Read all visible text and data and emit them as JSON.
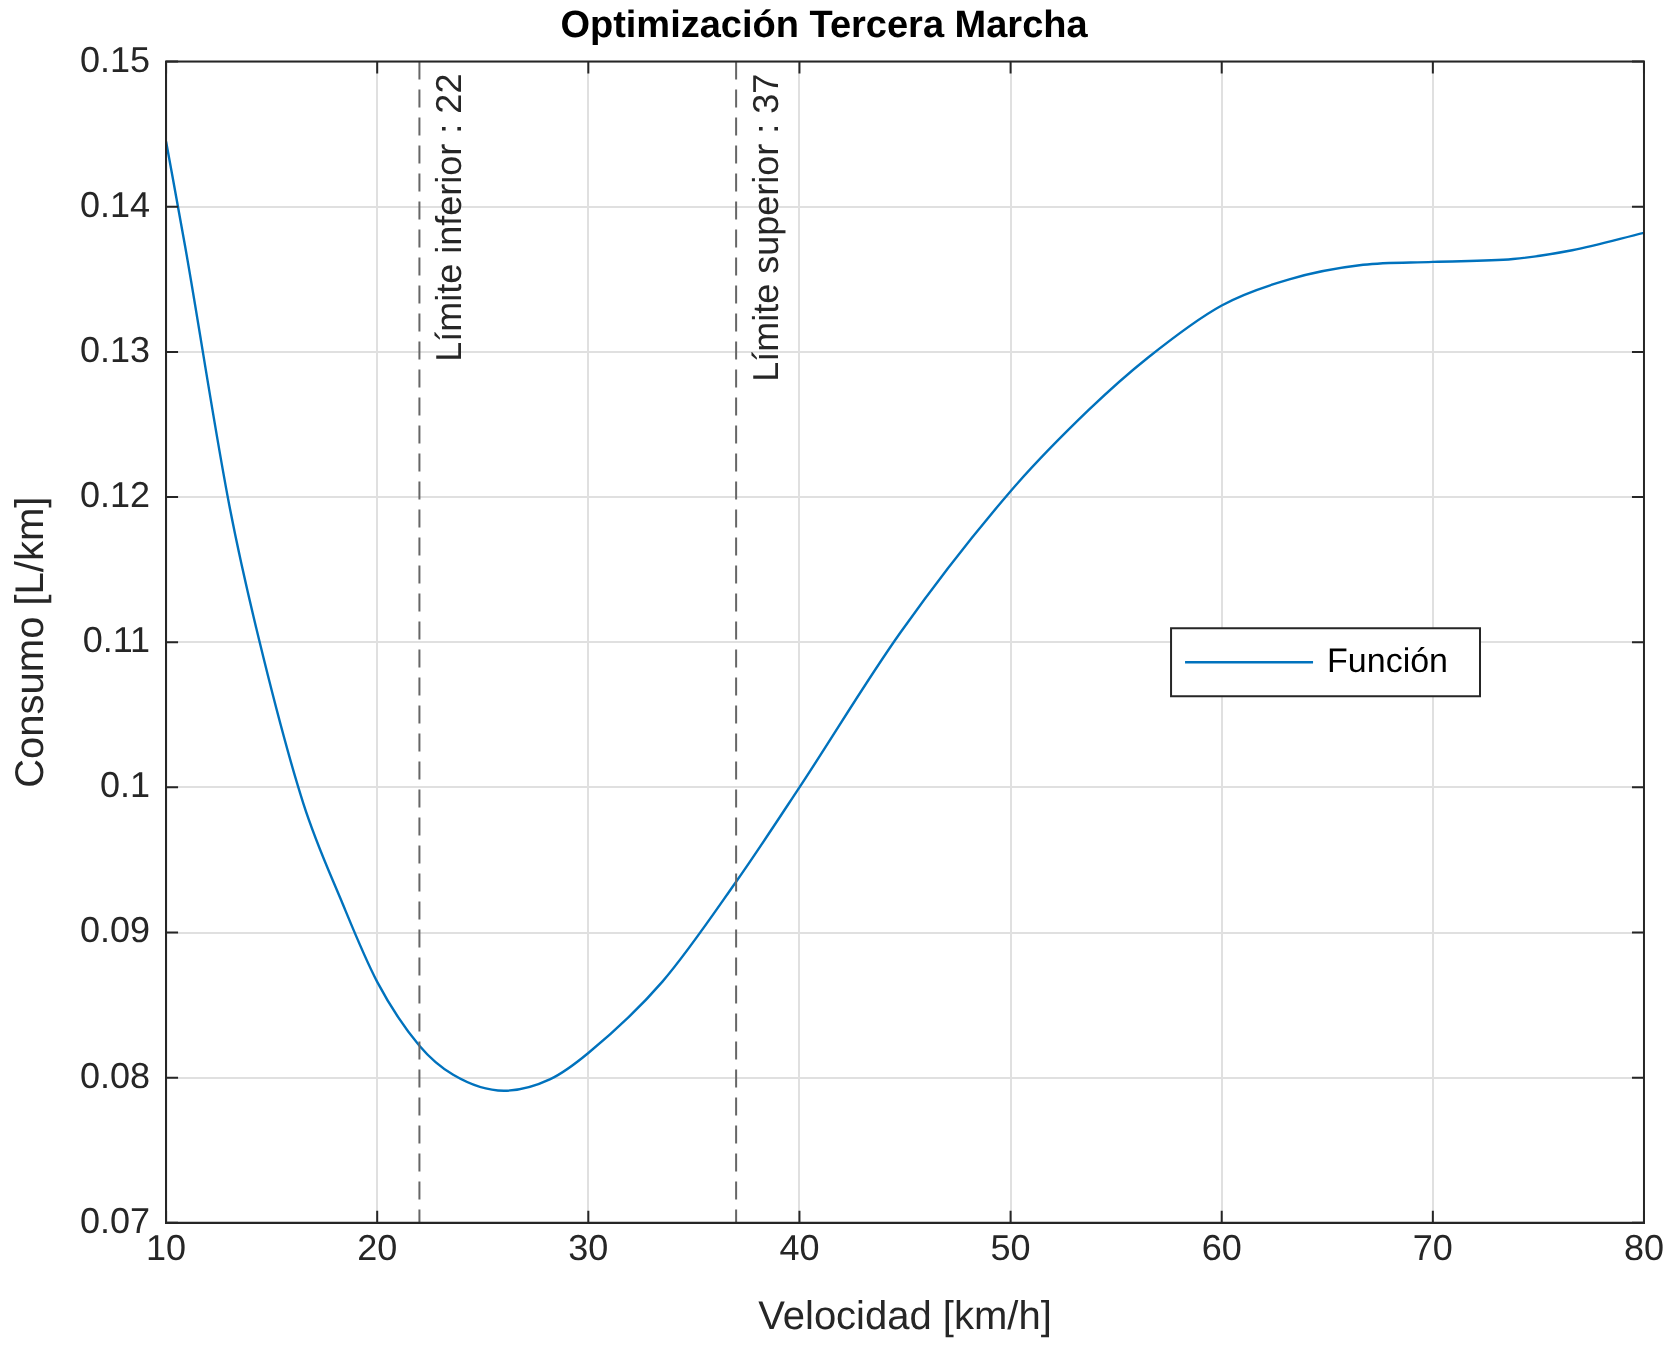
{
  "chart_data": {
    "type": "line",
    "title": "Optimización Tercera Marcha",
    "xlabel": "Velocidad [km/h]",
    "ylabel": "Consumo [L/km]",
    "xlim": [
      10,
      80
    ],
    "xticks": [
      10,
      20,
      30,
      40,
      50,
      60,
      70,
      80
    ],
    "ylim": [
      0.07,
      0.15
    ],
    "yticks": [
      0.07,
      0.08,
      0.09,
      0.1,
      0.11,
      0.12,
      0.13,
      0.14,
      0.15
    ],
    "grid": true,
    "legend": "right",
    "marker": "none",
    "line_style": "solid",
    "series": [
      {
        "name": "Función",
        "color": "#0072bd",
        "x": [
          10,
          10.9,
          13,
          14.4,
          16.5,
          18.3,
          20,
          22,
          23.6,
          26,
          28.2,
          30,
          33.5,
          37,
          40,
          44.8,
          50,
          53.7,
          56.5,
          60,
          63.2,
          66.7,
          70,
          73.8,
          76.6,
          80
        ],
        "values": [
          0.1445,
          0.1373,
          0.1194,
          0.1102,
          0.0989,
          0.0922,
          0.0866,
          0.0822,
          0.0802,
          0.0791,
          0.0799,
          0.0817,
          0.0866,
          0.0935,
          0.1,
          0.1107,
          0.1204,
          0.126,
          0.1296,
          0.1332,
          0.135,
          0.136,
          0.1362,
          0.1364,
          0.137,
          0.1382
        ]
      }
    ],
    "ref_lines": [
      {
        "axis": "x",
        "value": 22,
        "label": "Límite inferior : 22",
        "color": "#666666",
        "line_style": "dashed"
      },
      {
        "axis": "x",
        "value": 37,
        "label": "Límite superior : 37",
        "color": "#666666",
        "line_style": "dashed"
      }
    ]
  }
}
